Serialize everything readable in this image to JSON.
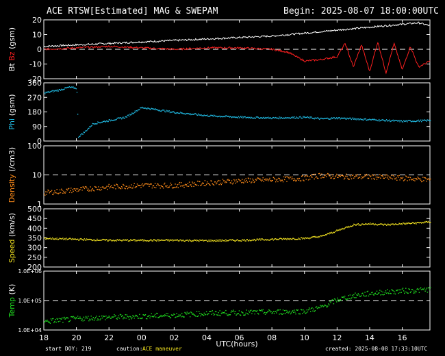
{
  "header": {
    "title": "ACE RTSW[Estimated] MAG & SWEPAM",
    "begin": "Begin: 2025-08-07 18:00:00UTC"
  },
  "footer": {
    "start": "start DOY: 219",
    "caution_label": "caution:",
    "caution_value": "ACE maneuver",
    "created": "created: 2025-08-08 17:33:10UTC"
  },
  "colors": {
    "bt": "#ffffff",
    "bz": "#ff2020",
    "phi": "#20b8e0",
    "density": "#ff8c1a",
    "speed": "#f0e020",
    "temp": "#20e020",
    "axes": "#ffffff",
    "caution": "#f0e020"
  },
  "chart_data": {
    "type": "line",
    "xlabel": "UTC(hours)",
    "x_range_hours": [
      18,
      41.7
    ],
    "x_ticks": [
      "18",
      "20",
      "22",
      "00",
      "02",
      "04",
      "06",
      "08",
      "10",
      "12",
      "14",
      "16"
    ],
    "panels": [
      {
        "id": "mag",
        "ylabel_parts": [
          {
            "text": "Bt",
            "color": "#ffffff"
          },
          {
            "text": "Bz",
            "color": "#ff2020"
          },
          {
            "text": "(gsm)",
            "color": "#ffffff"
          }
        ],
        "ylim": [
          -20,
          20
        ],
        "yticks": [
          "-20",
          "-10",
          "0",
          "10",
          "20"
        ],
        "ytick_values": [
          -20,
          -10,
          0,
          10,
          20
        ],
        "scale": "linear",
        "dashed_ref": 0,
        "series": [
          {
            "name": "Bt",
            "style": "line",
            "x": [
              18,
              20,
              22,
              24,
              26,
              28,
              30,
              32,
              34,
              36,
              37,
              38,
              39,
              40,
              41,
              41.7
            ],
            "y": [
              2,
              3,
              4,
              5,
              6,
              7,
              8,
              9,
              11,
              13,
              14,
              15,
              16,
              17,
              18,
              16
            ]
          },
          {
            "name": "Bz",
            "style": "line",
            "x": [
              18,
              20,
              22,
              24,
              26,
              28,
              30,
              32,
              33,
              34,
              35,
              36,
              36.5,
              37,
              37.5,
              38,
              38.5,
              39,
              39.5,
              40,
              40.5,
              41,
              41.7
            ],
            "y": [
              0,
              1,
              2,
              1,
              0,
              1,
              1,
              0,
              -2,
              -8,
              -7,
              -5,
              4,
              -12,
              3,
              -15,
              5,
              -16,
              4,
              -14,
              2,
              -12,
              -8
            ]
          }
        ]
      },
      {
        "id": "phi",
        "ylabel_parts": [
          {
            "text": "Phi",
            "color": "#20b8e0"
          },
          {
            "text": "(gsm)",
            "color": "#ffffff"
          }
        ],
        "ylim": [
          0,
          360
        ],
        "yticks": [
          "0",
          "90",
          "180",
          "270",
          "360"
        ],
        "ytick_values": [
          0,
          90,
          180,
          270,
          360
        ],
        "scale": "linear",
        "series": [
          {
            "name": "Phi",
            "style": "points",
            "x": [
              18,
              18.5,
              19,
              19.5,
              20,
              20.1,
              20.5,
              21,
              22,
              23,
              23.5,
              24,
              25,
              26,
              27,
              28,
              30,
              32,
              34,
              35,
              36,
              38,
              40,
              41.7
            ],
            "y": [
              300,
              310,
              320,
              335,
              330,
              30,
              60,
              110,
              130,
              150,
              180,
              210,
              195,
              180,
              170,
              160,
              150,
              145,
              150,
              140,
              145,
              135,
              125,
              130
            ]
          }
        ]
      },
      {
        "id": "density",
        "ylabel_parts": [
          {
            "text": "Density",
            "color": "#ff8c1a"
          },
          {
            "text": "(/cm3)",
            "color": "#ffffff"
          }
        ],
        "ylim": [
          1,
          100
        ],
        "yticks": [
          "1",
          "10",
          "100"
        ],
        "ytick_values": [
          1,
          10,
          100
        ],
        "scale": "log",
        "dashed_ref": 10,
        "series": [
          {
            "name": "Density",
            "style": "points",
            "x": [
              18,
              20,
              22,
              24,
              26,
              28,
              30,
              32,
              34,
              35,
              36,
              38,
              40,
              41.7
            ],
            "y": [
              2.5,
              3.2,
              4,
              4.5,
              4.5,
              5.5,
              6.5,
              7,
              8,
              10,
              9,
              9,
              8,
              7
            ]
          }
        ]
      },
      {
        "id": "speed",
        "ylabel_parts": [
          {
            "text": "Speed",
            "color": "#f0e020"
          },
          {
            "text": "(km/s)",
            "color": "#ffffff"
          }
        ],
        "ylim": [
          200,
          500
        ],
        "yticks": [
          "200",
          "250",
          "300",
          "350",
          "400",
          "450",
          "500"
        ],
        "ytick_values": [
          200,
          250,
          300,
          350,
          400,
          450,
          500
        ],
        "scale": "linear",
        "series": [
          {
            "name": "Speed",
            "style": "points",
            "x": [
              18,
              20,
              22,
              24,
              26,
              28,
              30,
              32,
              34,
              35,
              36,
              37,
              38,
              39,
              40,
              41,
              41.7
            ],
            "y": [
              350,
              345,
              340,
              340,
              340,
              338,
              340,
              345,
              350,
              360,
              390,
              420,
              425,
              420,
              425,
              430,
              435
            ]
          }
        ]
      },
      {
        "id": "temp",
        "ylabel_parts": [
          {
            "text": "Temp",
            "color": "#20e020"
          },
          {
            "text": "(K)",
            "color": "#ffffff"
          }
        ],
        "ylim": [
          10000,
          1000000
        ],
        "yticks": [
          "1.0E+04",
          "1.0E+05",
          "1.0E+06"
        ],
        "ytick_values": [
          10000,
          100000,
          1000000
        ],
        "scale": "log",
        "dashed_ref": 100000,
        "series": [
          {
            "name": "Temp",
            "style": "points",
            "x": [
              18,
              20,
              22,
              24,
              26,
              28,
              30,
              32,
              34,
              35,
              36,
              37,
              38,
              39,
              40,
              41,
              41.7
            ],
            "y": [
              20000,
              25000,
              28000,
              30000,
              33000,
              38000,
              40000,
              42000,
              45000,
              60000,
              110000,
              150000,
              180000,
              200000,
              220000,
              230000,
              250000
            ]
          }
        ]
      }
    ]
  }
}
